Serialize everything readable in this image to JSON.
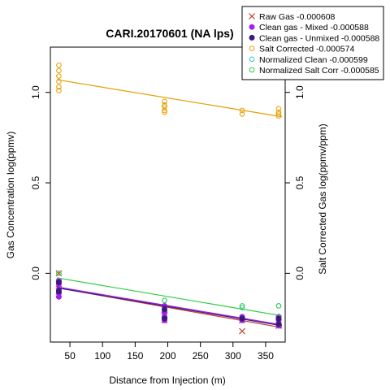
{
  "chart_data": {
    "type": "scatter",
    "title": "CARI.20170601 (NA lps)",
    "xlabel": "Distance from Injection (m)",
    "ylabel": "Gas Concentration log(ppmv)",
    "ylabel_right": "Salt Corrected Gas log(ppmv/ppm)",
    "xlim": [
      20,
      380
    ],
    "ylim": [
      -0.38,
      1.25
    ],
    "x_ticks": [
      "50",
      "100",
      "150",
      "200",
      "250",
      "300",
      "350"
    ],
    "y_ticks": [
      "0.0",
      "0.5",
      "1.0"
    ],
    "legend_position": "top-right",
    "series": [
      {
        "name": "Raw Gas -0.000608",
        "marker": "cross",
        "color": "#c0392b",
        "x": [
          33,
          33,
          33,
          195,
          195,
          195,
          314,
          314,
          370,
          370
        ],
        "y": [
          0.0,
          -0.06,
          -0.1,
          -0.2,
          -0.23,
          -0.26,
          -0.26,
          -0.32,
          -0.27,
          -0.29
        ],
        "trend": [
          [
            30,
            -0.08
          ],
          [
            375,
            -0.3
          ]
        ]
      },
      {
        "name": "Clean gas - Mixed -0.000588",
        "marker": "dot",
        "color": "#a020f0",
        "x": [
          33,
          33,
          33,
          33,
          33,
          195,
          195,
          195,
          195,
          195,
          314,
          314,
          370,
          370,
          370,
          370
        ],
        "y": [
          -0.04,
          -0.06,
          -0.09,
          -0.11,
          -0.13,
          -0.18,
          -0.2,
          -0.22,
          -0.24,
          -0.26,
          -0.24,
          -0.26,
          -0.24,
          -0.26,
          -0.28,
          -0.29
        ],
        "trend": [
          [
            30,
            -0.075
          ],
          [
            375,
            -0.285
          ]
        ]
      },
      {
        "name": "Clean gas - Unmixed -0.000588",
        "marker": "dot",
        "color": "#3a1a78",
        "x": [
          33,
          33,
          195,
          195,
          314,
          370,
          370
        ],
        "y": [
          -0.05,
          -0.1,
          -0.2,
          -0.25,
          -0.25,
          -0.25,
          -0.28
        ],
        "trend": [
          [
            30,
            -0.08
          ],
          [
            375,
            -0.29
          ]
        ]
      },
      {
        "name": "Salt Corrected -0.000574",
        "marker": "circle",
        "color": "#e69f00",
        "x": [
          33,
          33,
          33,
          33,
          33,
          33,
          195,
          195,
          195,
          195,
          195,
          314,
          314,
          370,
          370,
          370,
          370
        ],
        "y": [
          1.15,
          1.12,
          1.09,
          1.06,
          1.03,
          1.01,
          0.95,
          0.93,
          0.92,
          0.9,
          0.89,
          0.9,
          0.88,
          0.91,
          0.89,
          0.88,
          0.87
        ],
        "trend": [
          [
            30,
            1.07
          ],
          [
            375,
            0.865
          ]
        ]
      },
      {
        "name": "Normalized Clean -0.000599",
        "marker": "circle",
        "color": "#2ec4c4",
        "x": [
          33,
          195,
          314,
          370
        ],
        "y": [
          0.0,
          -0.15,
          -0.19,
          -0.18
        ],
        "trend": []
      },
      {
        "name": "Normalized Salt Corr -0.000585",
        "marker": "circle",
        "color": "#2ecc40",
        "x": [
          33,
          195,
          314,
          370
        ],
        "y": [
          0.0,
          -0.15,
          -0.18,
          -0.18
        ],
        "trend": [
          [
            30,
            -0.025
          ],
          [
            375,
            -0.235
          ]
        ]
      }
    ]
  }
}
